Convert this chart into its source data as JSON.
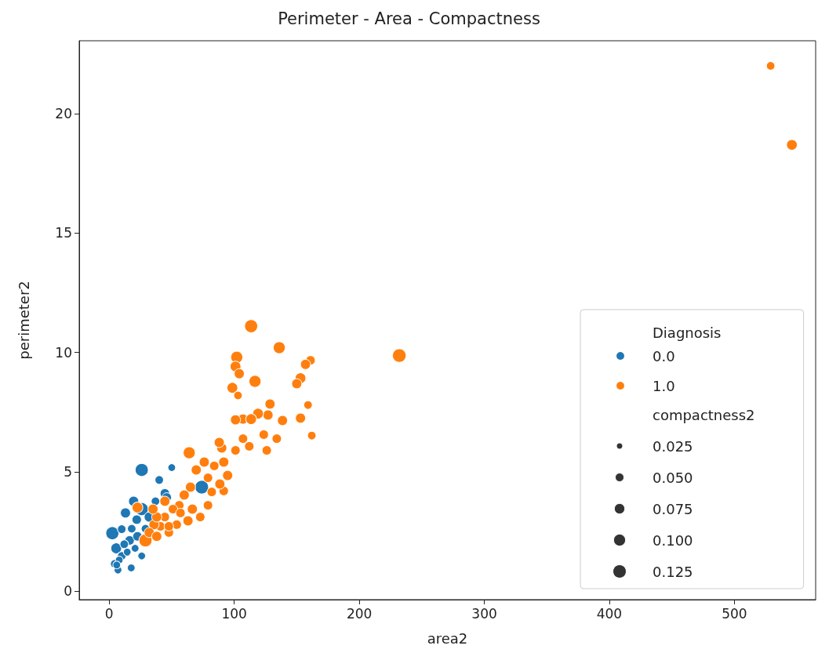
{
  "chart_data": {
    "type": "bubble",
    "title": "Perimeter - Area - Compactness",
    "xlabel": "area2",
    "ylabel": "perimeter2",
    "legend_title": "Diagnosis",
    "annotations": [
      "compactness2"
    ],
    "legend": "bottom right",
    "grid": false,
    "marker": "circle",
    "xlim": [
      -24,
      565
    ],
    "xticks": [
      0,
      100,
      200,
      300,
      400,
      500
    ],
    "ylim": [
      -0.35,
      23.05
    ],
    "yticks": [
      0,
      5,
      10,
      15,
      20
    ],
    "size_legend": [
      0.025,
      {
        "value": 0.05,
        "label": "0.050"
      },
      0.075,
      {
        "value": 0.1,
        "label": "0.100"
      },
      0.125
    ],
    "series": [
      {
        "name": "0.0",
        "color": "#1f77b4",
        "x": [
          2.5,
          26,
          50,
          40,
          74,
          26,
          19.5,
          13,
          5.6,
          4.4,
          7,
          10,
          16.3,
          22.6,
          32,
          37,
          44.5,
          46,
          18,
          12,
          8,
          14.4,
          20.7,
          29,
          26,
          17.6,
          6,
          10,
          22
        ],
        "values": [
          2.43,
          5.08,
          5.18,
          4.66,
          4.36,
          3.44,
          3.77,
          3.28,
          1.8,
          1.15,
          0.89,
          1.48,
          2.13,
          2.3,
          3.11,
          3.77,
          4.1,
          3.93,
          2.62,
          1.97,
          1.31,
          1.64,
          1.8,
          2.62,
          1.48,
          0.98,
          1.1,
          2.6,
          3.0
        ],
        "sizes": [
          0.12,
          0.12,
          0.04,
          0.05,
          0.13,
          0.12,
          0.07,
          0.07,
          0.08,
          0.05,
          0.04,
          0.05,
          0.06,
          0.06,
          0.07,
          0.05,
          0.06,
          0.06,
          0.05,
          0.05,
          0.04,
          0.04,
          0.04,
          0.05,
          0.04,
          0.04,
          0.04,
          0.05,
          0.06
        ]
      },
      {
        "name": "1.0",
        "color": "#ff7f0e",
        "x": [
          529,
          546,
          232,
          113.5,
          136,
          161,
          157,
          102,
          101,
          104,
          116.6,
          98.5,
          103,
          153,
          150,
          159,
          128.6,
          127,
          119,
          107,
          101,
          113.5,
          153,
          162,
          138.6,
          134,
          126,
          123.6,
          107,
          112,
          101,
          90,
          88,
          64,
          76,
          91.6,
          84,
          69.6,
          79,
          94.7,
          91.6,
          88.5,
          65,
          60,
          56,
          51,
          44.5,
          41,
          35.8,
          29,
          32,
          38,
          47.7,
          54,
          63,
          72.8,
          79,
          66.5,
          57,
          44.5,
          22.6,
          38,
          35,
          82,
          47.7
        ],
        "values": [
          22.0,
          18.69,
          9.87,
          11.1,
          10.2,
          9.67,
          9.5,
          9.8,
          9.41,
          9.11,
          8.79,
          8.52,
          8.2,
          8.92,
          8.69,
          7.8,
          7.84,
          7.38,
          7.44,
          7.21,
          7.18,
          7.21,
          7.25,
          6.52,
          7.15,
          6.39,
          5.9,
          6.56,
          6.39,
          6.07,
          5.9,
          6.0,
          6.23,
          5.8,
          5.41,
          5.41,
          5.25,
          5.08,
          4.75,
          4.85,
          4.2,
          4.49,
          4.36,
          4.03,
          3.6,
          3.44,
          3.11,
          2.72,
          2.79,
          2.13,
          2.46,
          2.3,
          2.46,
          2.79,
          2.95,
          3.11,
          3.6,
          3.44,
          3.28,
          3.77,
          3.51,
          3.11,
          3.44,
          4.16,
          2.72
        ],
        "sizes": [
          0.05,
          0.08,
          0.13,
          0.12,
          0.1,
          0.06,
          0.07,
          0.1,
          0.08,
          0.07,
          0.1,
          0.08,
          0.05,
          0.08,
          0.07,
          0.05,
          0.07,
          0.07,
          0.08,
          0.07,
          0.07,
          0.08,
          0.07,
          0.05,
          0.07,
          0.06,
          0.06,
          0.06,
          0.06,
          0.06,
          0.06,
          0.07,
          0.07,
          0.1,
          0.07,
          0.07,
          0.06,
          0.07,
          0.06,
          0.07,
          0.06,
          0.07,
          0.07,
          0.07,
          0.06,
          0.06,
          0.06,
          0.06,
          0.07,
          0.12,
          0.07,
          0.07,
          0.06,
          0.06,
          0.07,
          0.06,
          0.06,
          0.07,
          0.06,
          0.07,
          0.08,
          0.07,
          0.07,
          0.06,
          0.06
        ]
      }
    ]
  }
}
